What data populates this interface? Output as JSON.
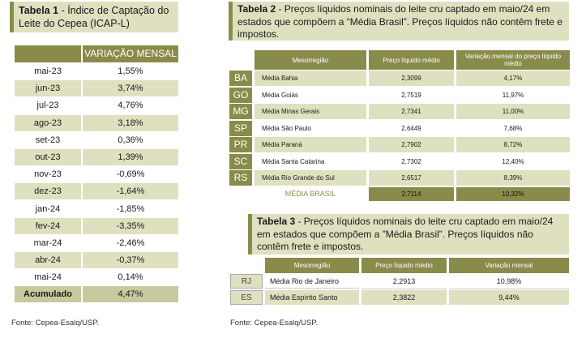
{
  "table1": {
    "title_bold": "Tabela 1",
    "title_rest": " - Índice de Captação do Leite do Cepea (ICAP-L)",
    "header": "VARIAÇÃO MENSAL",
    "rows": [
      {
        "month": "mai-23",
        "value": "1,55%"
      },
      {
        "month": "jun-23",
        "value": "3,74%"
      },
      {
        "month": "jul-23",
        "value": "4,76%"
      },
      {
        "month": "ago-23",
        "value": "3,18%"
      },
      {
        "month": "set-23",
        "value": "0,36%"
      },
      {
        "month": "out-23",
        "value": "1,39%"
      },
      {
        "month": "nov-23",
        "value": "-0,69%"
      },
      {
        "month": "dez-23",
        "value": "-1,64%"
      },
      {
        "month": "jan-24",
        "value": "-1,85%"
      },
      {
        "month": "fev-24",
        "value": "-3,35%"
      },
      {
        "month": "mar-24",
        "value": "-2,46%"
      },
      {
        "month": "abr-24",
        "value": "-0,37%"
      },
      {
        "month": "mai-24",
        "value": "0,14%"
      }
    ],
    "accumulated_label": "Acumulado",
    "accumulated_value": "4,47%",
    "source": "Fonte: Cepea-Esalq/USP."
  },
  "table2": {
    "title_bold": "Tabela 2",
    "title_rest": " - Preços líquidos nominais do leite cru captado em maio/24 em estados que compõem a “Média Brasil”. Preços líquidos não contêm frete e impostos.",
    "headers": [
      "Mesorregião",
      "Preço líquido médio",
      "Variação mensal do preço líquido médio"
    ],
    "rows": [
      {
        "code": "BA",
        "name": "Média Bahia",
        "price": "2,3099",
        "var": "4,17%"
      },
      {
        "code": "GO",
        "name": "Média Goiás",
        "price": "2,7519",
        "var": "11,97%"
      },
      {
        "code": "MG",
        "name": "Média Minas Gerais",
        "price": "2,7341",
        "var": "11,00%"
      },
      {
        "code": "SP",
        "name": "Média São Paulo",
        "price": "2,6449",
        "var": "7,68%"
      },
      {
        "code": "PR",
        "name": "Média Paraná",
        "price": "2,7902",
        "var": "8,72%"
      },
      {
        "code": "SC",
        "name": "Média Santa Catarina",
        "price": "2,7302",
        "var": "12,40%"
      },
      {
        "code": "RS",
        "name": "Média Rio Grande do Sul",
        "price": "2,6517",
        "var": "8,39%"
      }
    ],
    "avg_label": "MÉDIA BRASIL",
    "avg_price": "2,7114",
    "avg_var": "10,32%"
  },
  "table3": {
    "title_bold": "Tabela 3",
    "title_rest": " - Preços líquidos nominais do leite cru captado em maio/24 em estados que compõem a ”Média Brasil”. Preços líquidos não contêm frete e impostos.",
    "headers": [
      "Mesorregião",
      "Preço líquido médio",
      "Variação mensal"
    ],
    "rows": [
      {
        "code": "RJ",
        "name": "Média Rio de Janeiro",
        "price": "2,2913",
        "var": "10,98%"
      },
      {
        "code": "ES",
        "name": "Média Espírito Santo",
        "price": "2,3822",
        "var": "9,44%"
      }
    ],
    "source": "Fonte: Cepea-Esalq/USP."
  }
}
